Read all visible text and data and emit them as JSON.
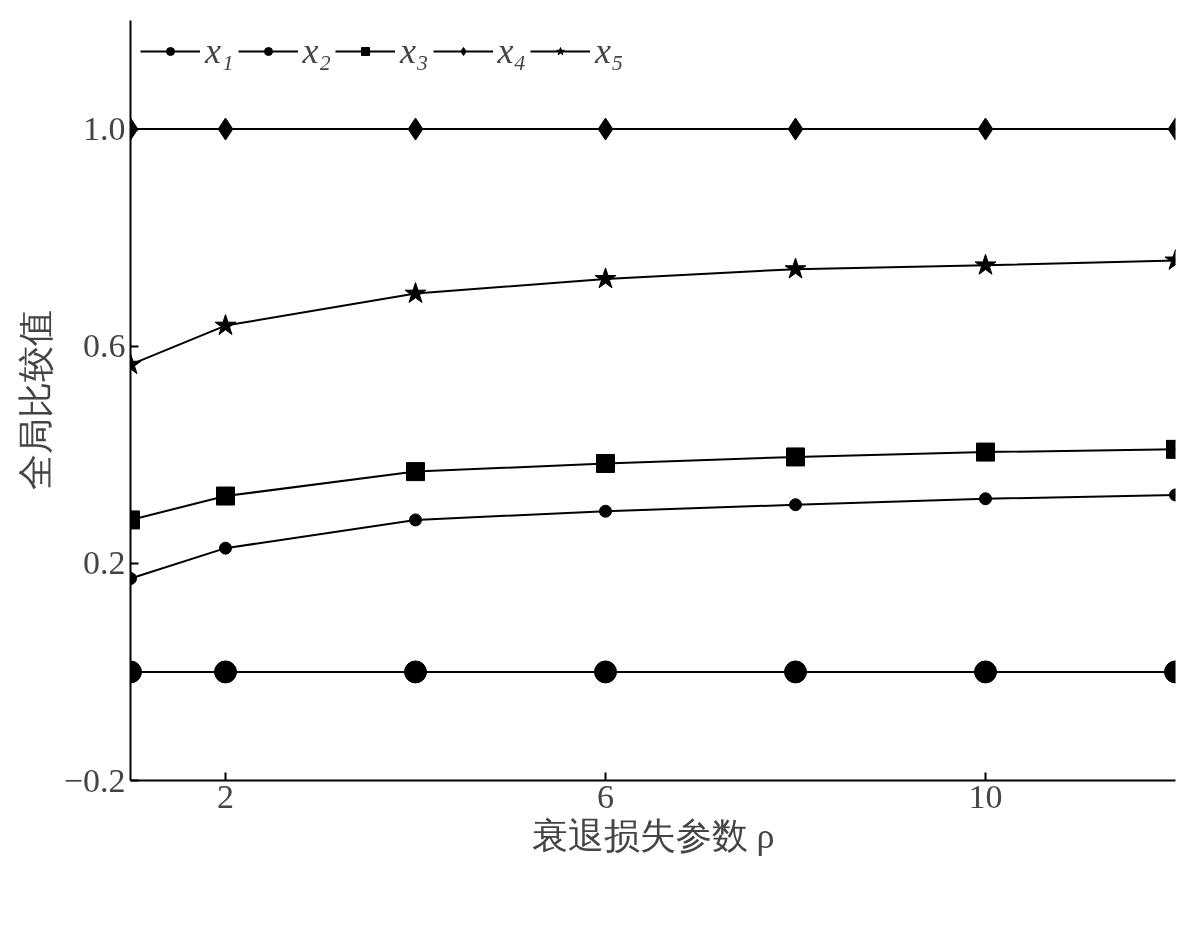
{
  "chart_data": {
    "type": "line",
    "xlabel": "衰退损失参数 ρ",
    "ylabel": "全局比较值",
    "x": [
      1,
      2,
      4,
      6,
      8,
      10,
      12
    ],
    "series": [
      {
        "name": "x₁",
        "color": "#000000",
        "marker": "circle",
        "values": [
          0.172,
          0.228,
          0.28,
          0.296,
          0.308,
          0.319,
          0.326
        ]
      },
      {
        "name": "x₂",
        "color": "#000000",
        "marker": "circle",
        "values": [
          0,
          0,
          0,
          0,
          0,
          0,
          0
        ]
      },
      {
        "name": "x₃",
        "color": "#000000",
        "marker": "square",
        "values": [
          0.28,
          0.324,
          0.369,
          0.384,
          0.396,
          0.405,
          0.41
        ]
      },
      {
        "name": "x₄",
        "color": "#000000",
        "marker": "diamond",
        "values": [
          1,
          1,
          1,
          1,
          1,
          1,
          1
        ]
      },
      {
        "name": "x₅",
        "color": "#000000",
        "marker": "star",
        "values": [
          0.566,
          0.638,
          0.697,
          0.724,
          0.742,
          0.749,
          0.758
        ]
      }
    ],
    "xlim": [
      1,
      12
    ],
    "xticks": [
      2,
      6,
      10
    ],
    "ylim": [
      -0.2,
      1.2
    ],
    "yticks": [
      -0.2,
      0.2,
      0.6,
      {
        "value": 1,
        "label": "1.0"
      }
    ],
    "grid": false,
    "legend": "top",
    "line_style": "solid"
  }
}
